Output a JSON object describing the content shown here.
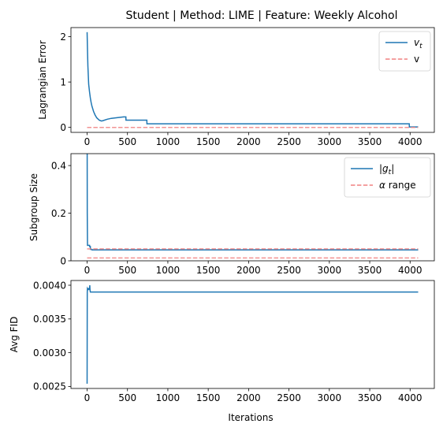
{
  "figure": {
    "title": "Student | Method: LIME | Feature: Weekly Alcohol"
  },
  "colors": {
    "series_main": "#1f77b4",
    "series_ref": "#f08080"
  },
  "chart_data": [
    {
      "type": "line",
      "ylabel": "Lagrangian Error",
      "xlabel": "",
      "xlim": [
        -200,
        4300
      ],
      "ylim": [
        -0.11,
        2.2
      ],
      "xticks": [
        0,
        500,
        1000,
        1500,
        2000,
        2500,
        3000,
        3500,
        4000
      ],
      "yticks": [
        0,
        1,
        2
      ],
      "legend": {
        "placement": "top-right",
        "entries": [
          "v_t",
          "v"
        ]
      },
      "series": [
        {
          "name": "v_t",
          "style": "solid",
          "x": [
            0,
            5,
            10,
            20,
            30,
            40,
            50,
            60,
            80,
            100,
            120,
            150,
            180,
            200,
            250,
            300,
            350,
            400,
            450,
            480,
            481,
            600,
            740,
            741,
            1000,
            2000,
            3000,
            3990,
            3991,
            4100
          ],
          "y": [
            2.1,
            1.7,
            1.35,
            0.95,
            0.78,
            0.65,
            0.55,
            0.47,
            0.35,
            0.27,
            0.21,
            0.16,
            0.14,
            0.15,
            0.18,
            0.2,
            0.21,
            0.22,
            0.23,
            0.23,
            0.16,
            0.16,
            0.16,
            0.08,
            0.08,
            0.08,
            0.08,
            0.08,
            0.01,
            0.01
          ]
        },
        {
          "name": "v",
          "style": "dashed",
          "x": [
            0,
            4100
          ],
          "y": [
            0.0,
            0.0
          ]
        }
      ]
    },
    {
      "type": "line",
      "ylabel": "Subgroup Size",
      "xlabel": "",
      "xlim": [
        -200,
        4300
      ],
      "ylim": [
        0.0,
        0.45
      ],
      "xticks": [
        0,
        500,
        1000,
        1500,
        2000,
        2500,
        3000,
        3500,
        4000
      ],
      "yticks": [
        0.0,
        0.2,
        0.4
      ],
      "legend": {
        "placement": "top-right",
        "entries": [
          "|g_t|",
          "α range"
        ]
      },
      "series": [
        {
          "name": "|g_t|",
          "style": "solid",
          "x": [
            0,
            1,
            2,
            5,
            6,
            30,
            31,
            40,
            41,
            60,
            61,
            4100
          ],
          "y": [
            0.45,
            0.45,
            0.2,
            0.065,
            0.065,
            0.065,
            0.06,
            0.06,
            0.048,
            0.048,
            0.046,
            0.046
          ]
        },
        {
          "name": "alpha_low",
          "style": "dashed",
          "x": [
            0,
            4100
          ],
          "y": [
            0.012,
            0.012
          ]
        },
        {
          "name": "alpha_high",
          "style": "dashed",
          "x": [
            0,
            4100
          ],
          "y": [
            0.05,
            0.05
          ]
        }
      ]
    },
    {
      "type": "line",
      "ylabel": "Avg FID",
      "xlabel": "Iterations",
      "xlim": [
        -200,
        4300
      ],
      "ylim": [
        0.00247,
        0.00407
      ],
      "xticks": [
        0,
        500,
        1000,
        1500,
        2000,
        2500,
        3000,
        3500,
        4000
      ],
      "yticks": [
        0.0025,
        0.003,
        0.0035,
        0.004
      ],
      "ytick_labels": [
        "0.0025",
        "0.0030",
        "0.0035",
        "0.0040"
      ],
      "legend": null,
      "series": [
        {
          "name": "avg_fid",
          "style": "solid",
          "x": [
            0,
            2,
            4,
            8,
            10,
            15,
            20,
            25,
            30,
            33,
            36,
            40,
            50,
            60,
            4100
          ],
          "y": [
            0.00254,
            0.0039,
            0.00395,
            0.00394,
            0.00395,
            0.00395,
            0.00394,
            0.00395,
            0.00394,
            0.004,
            0.00393,
            0.0039,
            0.0039,
            0.0039,
            0.0039
          ]
        }
      ]
    }
  ]
}
